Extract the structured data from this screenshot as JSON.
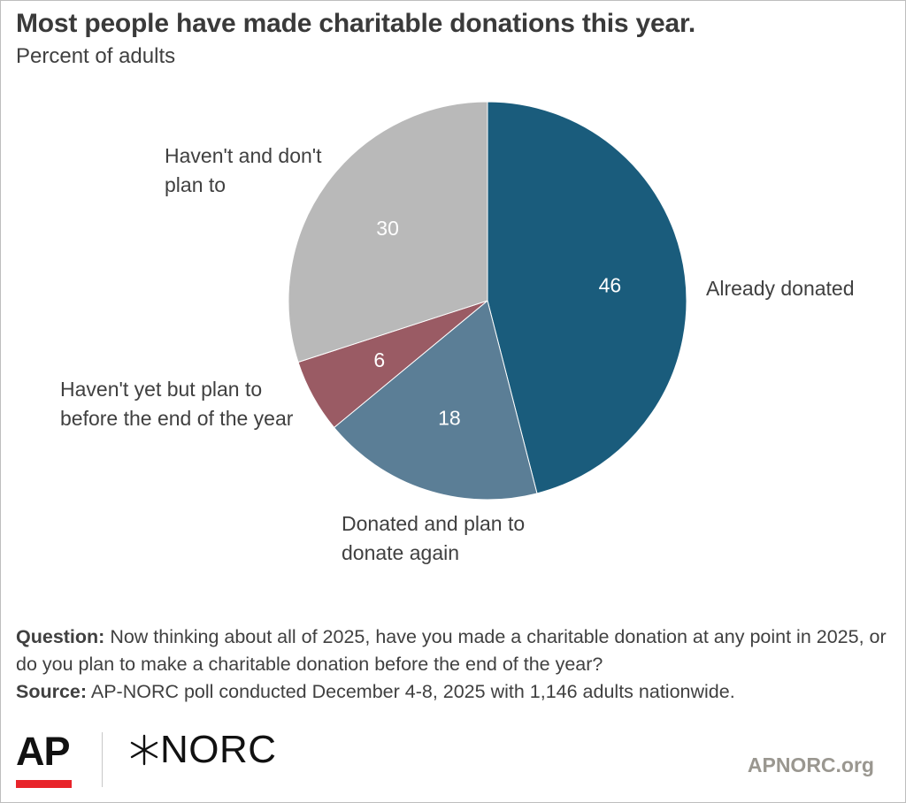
{
  "title": "Most people have made charitable donations this year.",
  "subtitle": "Percent of adults",
  "chart_data": {
    "type": "pie",
    "title": "Most people have made charitable donations this year.",
    "subtitle": "Percent of adults",
    "unit": "percent",
    "start": "12 o'clock, clockwise",
    "slices": [
      {
        "name": "Already donated",
        "value": 46,
        "color": "#1a5c7c",
        "label_lines": [
          "Already donated"
        ]
      },
      {
        "name": "Donated and plan to donate again",
        "value": 18,
        "color": "#5b7e96",
        "label_lines": [
          "Donated and plan to",
          "donate again"
        ]
      },
      {
        "name": "Haven't yet but plan to before the end of the year",
        "value": 6,
        "color": "#9a5b64",
        "label_lines": [
          "Haven't yet but plan to",
          "before the end of the year"
        ]
      },
      {
        "name": "Haven't and don't plan to",
        "value": 30,
        "color": "#b9b9b9",
        "label_lines": [
          "Haven't and don't",
          "plan to"
        ]
      }
    ]
  },
  "notes": {
    "question_label": "Question:",
    "question_text": " Now thinking about all of 2025, have you made a charitable donation at any point in 2025, or do you plan to make a charitable donation before the end of the year?",
    "source_label": "Source:",
    "source_text": " AP-NORC poll conducted December 4-8, 2025 with 1,146 adults nationwide."
  },
  "footer": {
    "ap_logo": "AP",
    "norc_logo": "NORC",
    "site": "APNORC.org",
    "ap_red": "#e8242a"
  }
}
